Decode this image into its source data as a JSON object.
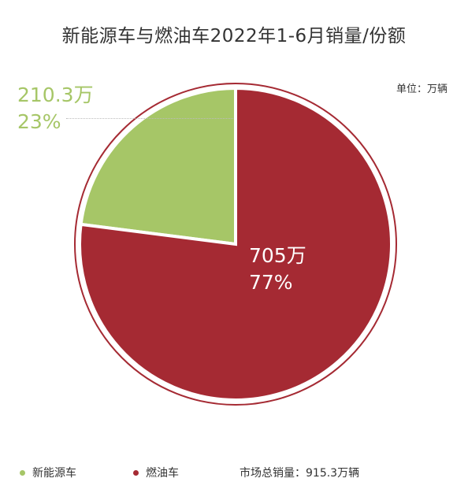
{
  "title": "新能源车与燃油车2022年1-6月销量/份额",
  "unit_label": "单位：万辆",
  "colors": {
    "new_energy": "#a6c667",
    "fuel": "#a52a33",
    "outline": "#a52a33"
  },
  "chart_data": {
    "type": "pie",
    "title": "新能源车与燃油车2022年1-6月销量/份额",
    "unit": "单位：万辆",
    "slices": [
      {
        "name": "新能源车",
        "value": 210.3,
        "value_label": "210.3万",
        "percent": 23,
        "percent_label": "23%",
        "color": "#a6c667"
      },
      {
        "name": "燃油车",
        "value": 705,
        "value_label": "705万",
        "percent": 77,
        "percent_label": "77%",
        "color": "#a52a33"
      }
    ],
    "total_label": "市场总销量：915.3万辆"
  }
}
